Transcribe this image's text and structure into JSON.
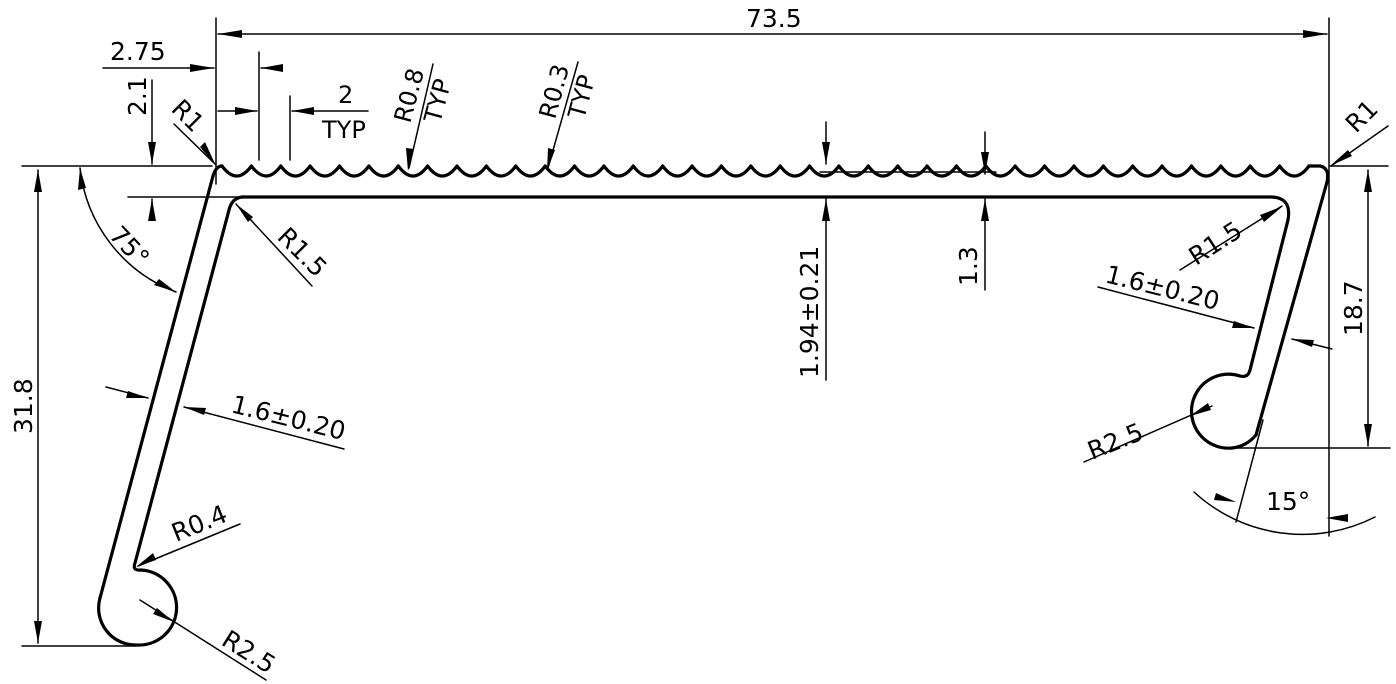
{
  "dimensions": {
    "overall_width": "73.5",
    "left_offset": "2.75",
    "top_offset": "2.1",
    "wave_pitch": "2",
    "wave_pitch_note": "TYP",
    "corner_radius_left": "R1",
    "corner_radius_right": "R1",
    "wave_radius_a": "R0.8",
    "wave_radius_a_note": "TYP",
    "wave_radius_b": "R0.3",
    "wave_radius_b_note": "TYP",
    "inner_radius_left": "R1.5",
    "inner_radius_right": "R1.5",
    "thickness_center": "1.94±0.21",
    "thickness_min": "1.3",
    "left_angle": "75°",
    "left_wall_thickness": "1.6±0.20",
    "right_wall_thickness": "1.6±0.20",
    "left_tip_radius": "R0.4",
    "left_curl_radius": "R2.5",
    "right_curl_radius": "R2.5",
    "overall_height": "31.8",
    "right_height": "18.7",
    "right_angle": "15°"
  }
}
